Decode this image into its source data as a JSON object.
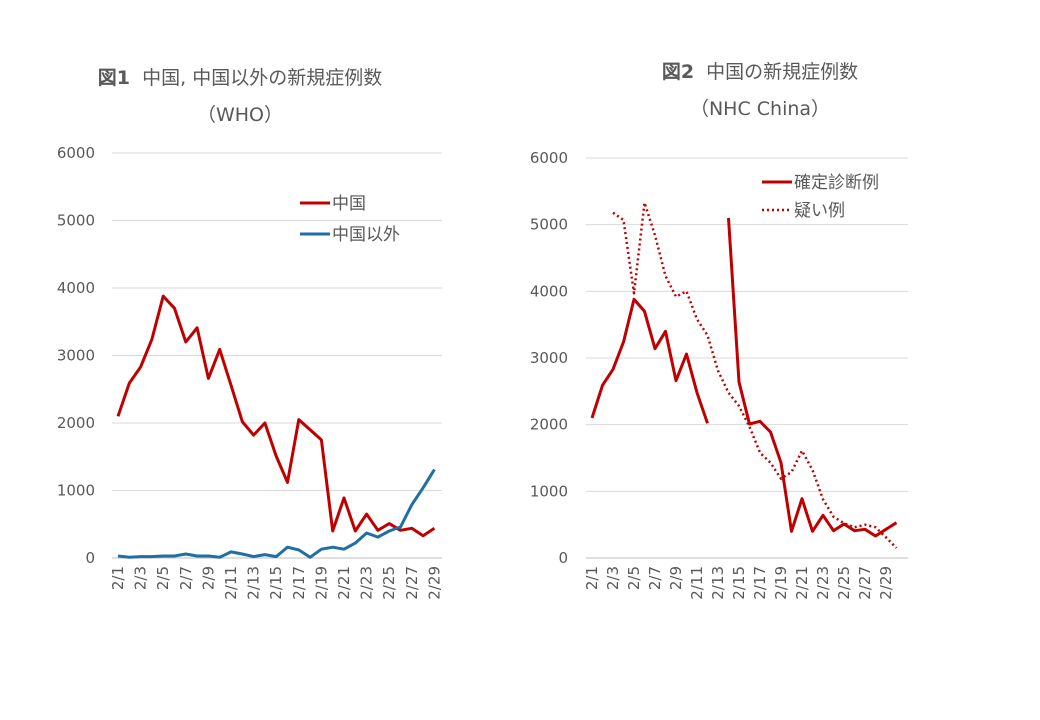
{
  "chart_data": [
    {
      "type": "line",
      "title": {
        "prefix": "図1",
        "main": "中国, 中国以外の新規症例数",
        "sub": "（WHO）"
      },
      "ylim": [
        0,
        6000
      ],
      "yticks": [
        0,
        1000,
        2000,
        3000,
        4000,
        5000,
        6000
      ],
      "grid": true,
      "legend": "top-right",
      "x": [
        "2/1",
        "2/2",
        "2/3",
        "2/4",
        "2/5",
        "2/6",
        "2/7",
        "2/8",
        "2/9",
        "2/10",
        "2/11",
        "2/12",
        "2/13",
        "2/14",
        "2/15",
        "2/16",
        "2/17",
        "2/18",
        "2/19",
        "2/20",
        "2/21",
        "2/22",
        "2/23",
        "2/24",
        "2/25",
        "2/26",
        "2/27",
        "2/28",
        "2/29"
      ],
      "xtick_labels": [
        "2/1",
        "2/3",
        "2/5",
        "2/7",
        "2/9",
        "2/11",
        "2/13",
        "2/15",
        "2/17",
        "2/19",
        "2/21",
        "2/23",
        "2/25",
        "2/27",
        "2/29"
      ],
      "series": [
        {
          "name": "中国",
          "color": "#c00000",
          "style": "solid",
          "values": [
            2100,
            2590,
            2830,
            3240,
            3880,
            3700,
            3200,
            3410,
            2660,
            3090,
            2560,
            2020,
            1820,
            2000,
            1510,
            1120,
            2050,
            1900,
            1750,
            400,
            890,
            400,
            650,
            410,
            510,
            410,
            440,
            330,
            440
          ]
        },
        {
          "name": "中国以外",
          "color": "#1f6fa5",
          "style": "solid",
          "values": [
            30,
            10,
            20,
            20,
            30,
            30,
            60,
            30,
            30,
            10,
            90,
            60,
            20,
            50,
            20,
            160,
            120,
            10,
            130,
            160,
            130,
            220,
            370,
            310,
            400,
            460,
            790,
            1040,
            1310
          ]
        }
      ]
    },
    {
      "type": "line",
      "title": {
        "prefix": "図2",
        "main": "中国の新規症例数",
        "sub": "（NHC China）"
      },
      "ylim": [
        0,
        6000
      ],
      "yticks": [
        0,
        1000,
        2000,
        3000,
        4000,
        5000,
        6000
      ],
      "grid": true,
      "legend": "top-right",
      "x": [
        "2/1",
        "2/2",
        "2/3",
        "2/4",
        "2/5",
        "2/6",
        "2/7",
        "2/8",
        "2/9",
        "2/10",
        "2/11",
        "2/12",
        "2/13",
        "2/14",
        "2/15",
        "2/16",
        "2/17",
        "2/18",
        "2/19",
        "2/20",
        "2/21",
        "2/22",
        "2/23",
        "2/24",
        "2/25",
        "2/26",
        "2/27",
        "2/28",
        "2/29",
        "2/30"
      ],
      "xtick_labels": [
        "2/1",
        "2/3",
        "2/5",
        "2/7",
        "2/9",
        "2/11",
        "2/13",
        "2/15",
        "2/17",
        "2/19",
        "2/21",
        "2/23",
        "2/25",
        "2/27",
        "2/29"
      ],
      "series": [
        {
          "name": "確定診断例",
          "color": "#c00000",
          "style": "solid",
          "values": [
            2100,
            2590,
            2830,
            3240,
            3880,
            3700,
            3140,
            3400,
            2660,
            3060,
            2480,
            2020,
            null,
            5100,
            2640,
            2010,
            2050,
            1890,
            1430,
            400,
            890,
            400,
            640,
            410,
            510,
            410,
            430,
            330,
            430,
            530
          ]
        },
        {
          "name": "疑い例",
          "color": "#c00000",
          "style": "dotted",
          "values": [
            null,
            null,
            5180,
            5070,
            3970,
            5330,
            4840,
            4230,
            3920,
            4000,
            3580,
            3340,
            2810,
            2480,
            2280,
            1970,
            1580,
            1430,
            1190,
            1290,
            1610,
            1320,
            880,
            620,
            520,
            460,
            500,
            460,
            310,
            150
          ]
        }
      ]
    }
  ]
}
